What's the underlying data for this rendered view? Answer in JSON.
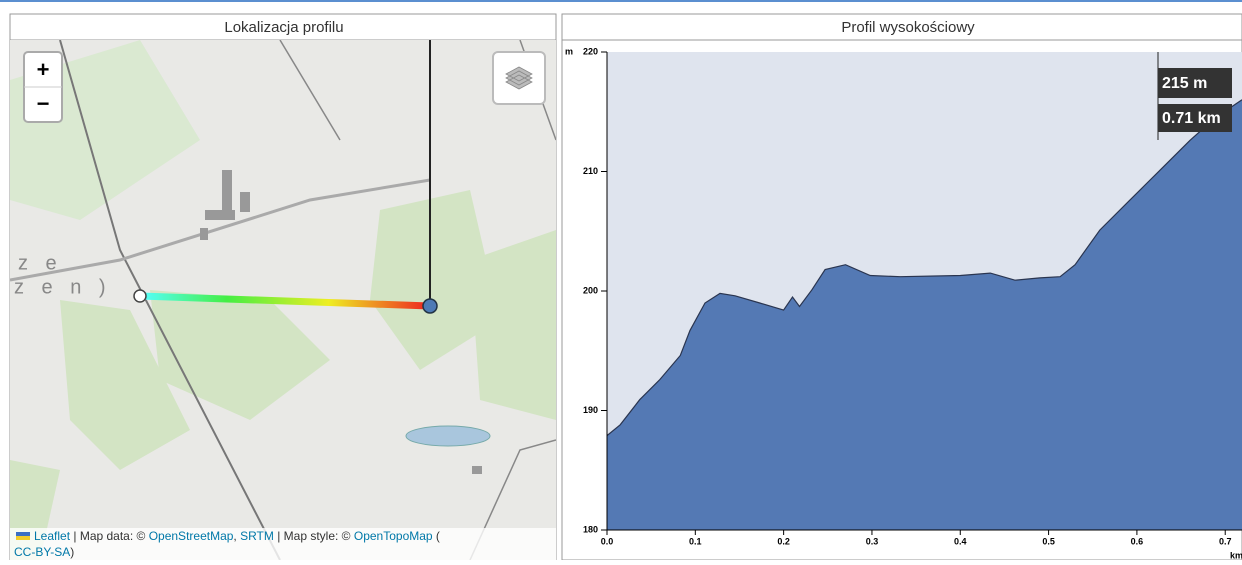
{
  "header": {
    "left_title": "Lokalizacja profilu",
    "right_title": "Profil wysokościowy"
  },
  "map": {
    "zoom_in": "+",
    "zoom_out": "−",
    "place_labels": [
      "z e",
      "z e n )"
    ],
    "attribution": [
      {
        "text": "Leaflet",
        "link": true
      },
      {
        "text": " | Map data: © ",
        "link": false
      },
      {
        "text": "OpenStreetMap",
        "link": true
      },
      {
        "text": ", ",
        "link": false
      },
      {
        "text": "SRTM",
        "link": true
      },
      {
        "text": " | Map style: © ",
        "link": false
      },
      {
        "text": "OpenTopoMap",
        "link": true
      },
      {
        "text": " (",
        "link": false
      },
      {
        "text": "CC-BY-SA",
        "link": true
      },
      {
        "text": ")",
        "link": false
      }
    ]
  },
  "chart_data": {
    "type": "area",
    "y_label": "m",
    "x_label": "km",
    "color": "#5479b4",
    "line_color": "#2a3550",
    "background": "#dfe4ee",
    "x": [
      0,
      0.015,
      0.037,
      0.06,
      0.083,
      0.094,
      0.111,
      0.128,
      0.145,
      0.173,
      0.2,
      0.21,
      0.218,
      0.232,
      0.247,
      0.27,
      0.298,
      0.332,
      0.4,
      0.434,
      0.462,
      0.49,
      0.513,
      0.53,
      0.558,
      0.592,
      0.626,
      0.66,
      0.689,
      0.719
    ],
    "values": [
      187.9,
      188.8,
      190.9,
      192.6,
      194.6,
      196.7,
      199.0,
      199.8,
      199.6,
      199.0,
      198.4,
      199.5,
      198.7,
      200.1,
      201.8,
      202.2,
      201.3,
      201.2,
      201.3,
      201.5,
      200.9,
      201.1,
      201.2,
      202.2,
      205.1,
      207.6,
      210.1,
      212.6,
      214.5,
      216.0
    ],
    "xlim": [
      0,
      0.719
    ],
    "ylim": [
      180,
      220
    ],
    "xticks": [
      {
        "value": 0,
        "label": "0.0"
      },
      0.1,
      0.2,
      0.3,
      0.4,
      0.5,
      0.6,
      0.7
    ],
    "yticks": [
      180,
      190,
      200,
      210,
      220
    ],
    "tooltip": {
      "elevation": "215 m",
      "distance": "0.71 km"
    }
  }
}
